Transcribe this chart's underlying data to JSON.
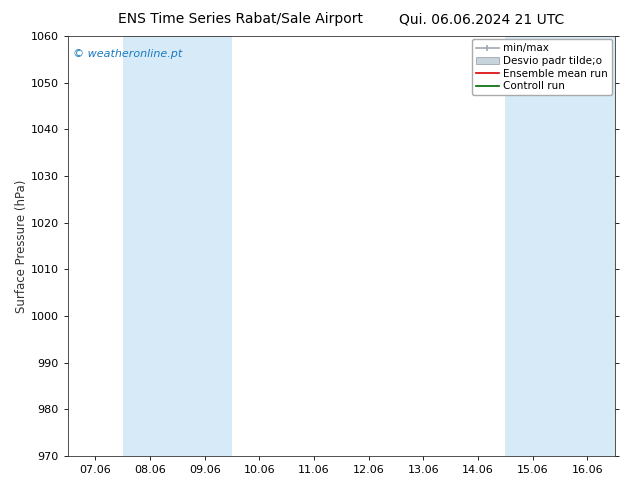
{
  "title_left": "ENS Time Series Rabat/Sale Airport",
  "title_right": "Qui. 06.06.2024 21 UTC",
  "ylabel": "Surface Pressure (hPa)",
  "ylim": [
    970,
    1060
  ],
  "yticks": [
    970,
    980,
    990,
    1000,
    1010,
    1020,
    1030,
    1040,
    1050,
    1060
  ],
  "xtick_labels": [
    "07.06",
    "08.06",
    "09.06",
    "10.06",
    "11.06",
    "12.06",
    "13.06",
    "14.06",
    "15.06",
    "16.06"
  ],
  "watermark": "© weatheronline.pt",
  "watermark_color": "#1a7abf",
  "shaded_color": "#d6ebf7",
  "bg_color": "#ffffff",
  "title_fontsize": 10,
  "label_fontsize": 8.5,
  "tick_fontsize": 8,
  "legend_fontsize": 7.5,
  "minmax_color": "#a0a8b0",
  "desvio_color": "#c8d4dc",
  "ensemble_color": "#dd0000",
  "controll_color": "#006600"
}
